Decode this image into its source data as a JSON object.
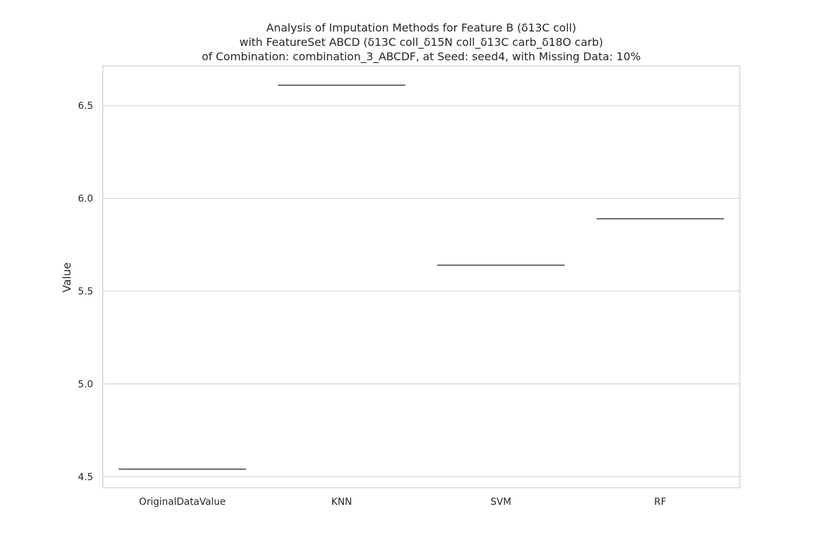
{
  "chart_data": {
    "type": "box",
    "title": [
      "Analysis of Imputation Methods for Feature B (δ13C coll)",
      "with FeatureSet ABCD (δ13C coll_δ15N coll_δ13C carb_δ18O carb)",
      "of Combination: combination_3_ABCDF, at Seed: seed4, with Missing Data: 10%"
    ],
    "xlabel": "",
    "ylabel": "Value",
    "categories": [
      "OriginalDataValue",
      "KNN",
      "SVM",
      "RF"
    ],
    "values": [
      4.54,
      6.61,
      5.64,
      5.89
    ],
    "yticks": [
      "4.5",
      "5.0",
      "5.5",
      "6.0",
      "6.5"
    ],
    "ylim": [
      4.44,
      6.715
    ],
    "grid": "horizontal",
    "colors": {
      "grid": "#cccccc",
      "frame": "#cccccc",
      "box": "#3d3d3d",
      "text": "#262626"
    }
  }
}
